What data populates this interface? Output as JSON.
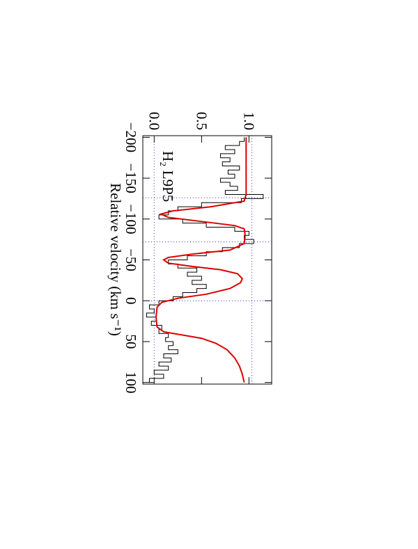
{
  "chart_data": {
    "type": "line",
    "title": "H₂ L9P5",
    "x_label": "Relative velocity (km s⁻¹)",
    "xlim": [
      -202,
      102
    ],
    "ylim": [
      -0.12,
      1.24
    ],
    "xticks": [
      {
        "value": -200,
        "label": "−200"
      },
      {
        "value": -150,
        "label": "−150"
      },
      {
        "value": -100,
        "label": "−100"
      },
      {
        "value": -50,
        "label": "−50"
      },
      0,
      50,
      100
    ],
    "yticks": [
      {
        "value": 0,
        "label": "0.0"
      },
      {
        "value": 0.5,
        "label": "0.5"
      },
      {
        "value": 1,
        "label": "1.0"
      }
    ],
    "hlines": [
      0,
      1.03
    ],
    "vlines": [
      -126,
      -72,
      0
    ],
    "ref_color": "#3333cc",
    "rotated": true,
    "series": [
      {
        "style": "step",
        "color": "#000000",
        "x": [
          -200,
          -195,
          -190,
          -185,
          -180,
          -175,
          -170,
          -165,
          -160,
          -155,
          -150,
          -145,
          -140,
          -135,
          -130,
          -125,
          -120,
          -115,
          -110,
          -105,
          -100,
          -95,
          -90,
          -85,
          -80,
          -75,
          -70,
          -65,
          -60,
          -55,
          -50,
          -45,
          -40,
          -35,
          -30,
          -25,
          -20,
          -15,
          -10,
          -5,
          0,
          5,
          10,
          15,
          20,
          25,
          30,
          35,
          40,
          45,
          50,
          55,
          60,
          65,
          70,
          75,
          80,
          85,
          90,
          95,
          100
        ],
        "values": [
          0.95,
          0.9,
          0.75,
          0.85,
          0.7,
          0.8,
          0.72,
          0.9,
          0.78,
          0.85,
          0.7,
          0.8,
          0.88,
          0.75,
          1.15,
          0.92,
          0.5,
          0.25,
          0.15,
          0.05,
          0.3,
          0.55,
          0.85,
          1.0,
          0.95,
          1.05,
          0.9,
          0.72,
          0.55,
          0.35,
          0.15,
          0.25,
          0.45,
          0.35,
          0.5,
          0.4,
          0.55,
          0.45,
          0.3,
          0.2,
          0.05,
          -0.05,
          0.0,
          -0.08,
          0.02,
          -0.03,
          0.08,
          0.05,
          0.15,
          0.12,
          0.2,
          0.15,
          0.25,
          0.1,
          0.18,
          0.05,
          0.15,
          0.0,
          0.1,
          -0.05,
          0.0
        ]
      },
      {
        "style": "smooth",
        "color": "#dd0000",
        "x": [
          -200,
          -130,
          -122,
          -115,
          -110,
          -106,
          -102,
          -97,
          -92,
          -88,
          -80,
          -70,
          -62,
          -57,
          -53,
          -50,
          -46,
          -42,
          -38,
          -33,
          -27,
          -22,
          -15,
          -8,
          -3,
          2,
          8,
          20,
          32,
          38,
          42,
          46,
          52,
          60,
          70,
          80,
          90,
          100
        ],
        "values": [
          0.97,
          0.97,
          0.95,
          0.6,
          0.2,
          0.07,
          0.15,
          0.5,
          0.85,
          0.95,
          0.96,
          0.95,
          0.8,
          0.4,
          0.15,
          0.1,
          0.15,
          0.4,
          0.7,
          0.88,
          0.93,
          0.91,
          0.8,
          0.55,
          0.25,
          0.08,
          0.03,
          0.02,
          0.03,
          0.1,
          0.3,
          0.5,
          0.65,
          0.77,
          0.85,
          0.9,
          0.93,
          0.95
        ]
      }
    ]
  }
}
